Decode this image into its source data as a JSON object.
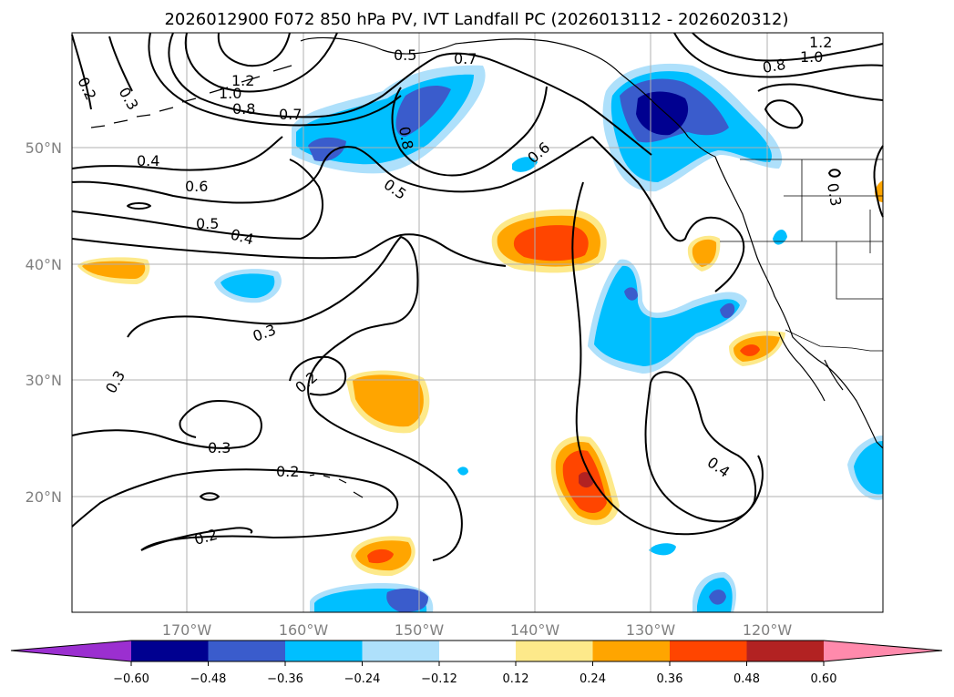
{
  "title": "2026012900 F072 850 hPa PV, IVT Landfall PC (2026013112 - 2026020312)",
  "map": {
    "lat_labels": [
      "50°N",
      "40°N",
      "30°N",
      "20°N"
    ],
    "lon_labels": [
      "170°W",
      "160°W",
      "150°W",
      "140°W",
      "130°W",
      "120°W"
    ],
    "contour_labels": [
      "0.2",
      "0.3",
      "1.2",
      "1.0",
      "0.8",
      "0.7",
      "0.5",
      "0.7",
      "0.8",
      "0.5",
      "0.4",
      "0.6",
      "0.5",
      "0.4",
      "0.3",
      "0.2",
      "0.3",
      "0.3",
      "0.2",
      "0.2",
      "0.6",
      "0.8",
      "1.0",
      "1.2",
      "0.3",
      "0.4"
    ]
  },
  "colorbar": {
    "tick_labels": [
      "−0.60",
      "−0.48",
      "−0.36",
      "−0.24",
      "−0.12",
      "0.12",
      "0.24",
      "0.36",
      "0.48",
      "0.60"
    ],
    "colors": [
      "#9b2fd0",
      "#000090",
      "#3a5ccc",
      "#00bfff",
      "#aee0fb",
      "#ffffff",
      "#fde98a",
      "#ffa500",
      "#ff4500",
      "#b22222",
      "#ff8aac"
    ]
  }
}
